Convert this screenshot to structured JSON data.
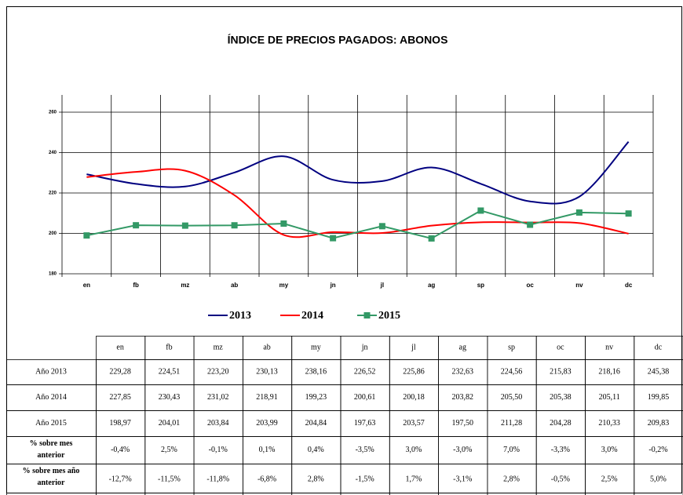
{
  "chart_data": {
    "type": "line",
    "title": "ÍNDICE DE PRECIOS PAGADOS: ABONOS",
    "categories": [
      "en",
      "fb",
      "mz",
      "ab",
      "my",
      "jn",
      "jl",
      "ag",
      "sp",
      "oc",
      "nv",
      "dc"
    ],
    "ylim": [
      180,
      260
    ],
    "yticks": [
      180,
      200,
      220,
      240,
      260
    ],
    "grid": true,
    "legend": "bottom",
    "series": [
      {
        "name": "2013",
        "color": "#000080",
        "smooth": true,
        "marker": null,
        "values": [
          229.28,
          224.51,
          223.2,
          230.13,
          238.16,
          226.52,
          225.86,
          232.63,
          224.56,
          215.83,
          218.16,
          245.38
        ],
        "value_labels": [
          "229,28",
          "224,51",
          "223,20",
          "230,13",
          "238,16",
          "226,52",
          "225,86",
          "232,63",
          "224,56",
          "215,83",
          "218,16",
          "245,38"
        ]
      },
      {
        "name": "2014",
        "color": "#ff0000",
        "smooth": true,
        "marker": null,
        "values": [
          227.85,
          230.43,
          231.02,
          218.91,
          199.23,
          200.61,
          200.18,
          203.82,
          205.5,
          205.38,
          205.11,
          199.85
        ],
        "value_labels": [
          "227,85",
          "230,43",
          "231,02",
          "218,91",
          "199,23",
          "200,61",
          "200,18",
          "203,82",
          "205,50",
          "205,38",
          "205,11",
          "199,85"
        ]
      },
      {
        "name": "2015",
        "color": "#339966",
        "smooth": false,
        "marker": "square",
        "values": [
          198.97,
          204.01,
          203.84,
          203.99,
          204.84,
          197.63,
          203.57,
          197.5,
          211.28,
          204.28,
          210.33,
          209.83
        ],
        "value_labels": [
          "198,97",
          "204,01",
          "203,84",
          "203,99",
          "204,84",
          "197,63",
          "203,57",
          "197,50",
          "211,28",
          "204,28",
          "210,33",
          "209,83"
        ]
      }
    ]
  },
  "table": {
    "series_row_labels": [
      "Año 2013",
      "Año 2014",
      "Año 2015"
    ],
    "extra_rows": [
      {
        "label": "% sobre mes anterior",
        "cells": [
          "-0,4%",
          "2,5%",
          "-0,1%",
          "0,1%",
          "0,4%",
          "-3,5%",
          "3,0%",
          "-3,0%",
          "7,0%",
          "-3,3%",
          "3,0%",
          "-0,2%"
        ]
      },
      {
        "label": "% sobre mes año anterior",
        "cells": [
          "-12,7%",
          "-11,5%",
          "-11,8%",
          "-6,8%",
          "2,8%",
          "-1,5%",
          "1,7%",
          "-3,1%",
          "2,8%",
          "-0,5%",
          "2,5%",
          "5,0%"
        ]
      }
    ]
  }
}
